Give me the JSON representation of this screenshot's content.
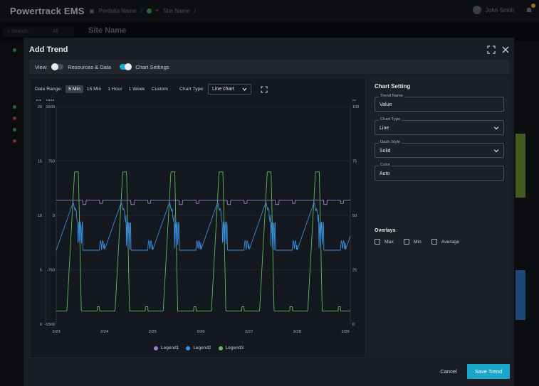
{
  "app": {
    "brand": "Powertrack EMS",
    "portfolio": "Portfolio Name",
    "site": "Site Name",
    "user": "John Smith",
    "search_placeholder": "Search...",
    "search_filter": "All",
    "page_title": "Site Name"
  },
  "modal": {
    "title": "Add Trend",
    "view_label": "View:",
    "view_toggle_1": "Resources & Data",
    "view_toggle_2": "Chart Settings",
    "date_range_label": "Date Range:",
    "date_ranges": [
      "5 Min",
      "15 Min",
      "1 Hour",
      "1 Week",
      "Custom"
    ],
    "active_range": "5 Min",
    "chart_type_label": "Chart Type:",
    "chart_type_value": "Line chart",
    "cancel_label": "Cancel",
    "save_label": "Save Trend"
  },
  "settings": {
    "title": "Chart Setting",
    "trend_name_label": "Trend Name",
    "trend_name_value": "Value",
    "chart_type_label": "Chart Type",
    "chart_type_value": "Line",
    "dash_style_label": "Dash Style",
    "dash_style_value": "Solid",
    "color_label": "Color",
    "color_value": "Auto",
    "overlays_title": "Overlays",
    "overlays": [
      "Max",
      "Min",
      "Average"
    ]
  },
  "chart_data": {
    "type": "line",
    "axis_left_1_label": "kV",
    "axis_left_2_label": "MW",
    "axis_right_label": "%",
    "y_kv_ticks": [
      "20",
      "15",
      "10",
      "5",
      "0"
    ],
    "y_mw_ticks": [
      "1500",
      "750",
      "0",
      "-750",
      "-1500"
    ],
    "y_pct_ticks": [
      "100",
      "75",
      "50",
      "25",
      "0"
    ],
    "x_ticks": [
      "2/23",
      "2/24",
      "2/25",
      "2/26",
      "2/27",
      "2/28",
      "2/29"
    ],
    "ylim_kv": [
      0,
      20
    ],
    "ylim_pct": [
      0,
      100
    ],
    "grid": true,
    "series": [
      {
        "name": "Legend1",
        "color": "#9b7fd4",
        "pattern": "steady level near 57% with small periodic dips",
        "level_pct": 57
      },
      {
        "name": "Legend2",
        "color": "#3b8fe0",
        "pattern": "daily oscillation between about 34% and 56%",
        "low_pct": 34,
        "high_pct": 56
      },
      {
        "name": "Legend3",
        "color": "#5cbf5a",
        "pattern": "daily square-like wave between about 6% and 70%",
        "low_pct": 6,
        "high_pct": 70
      }
    ]
  }
}
